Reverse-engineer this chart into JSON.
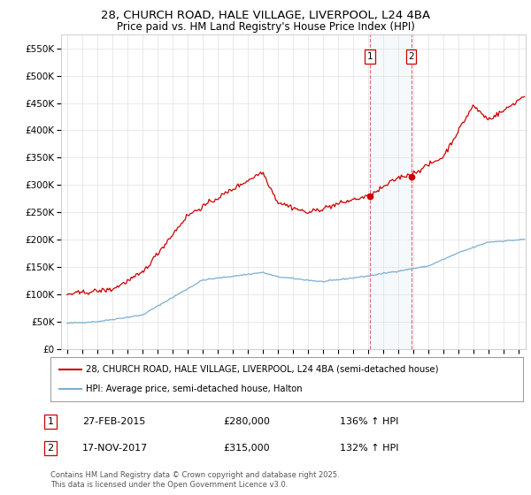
{
  "title_line1": "28, CHURCH ROAD, HALE VILLAGE, LIVERPOOL, L24 4BA",
  "title_line2": "Price paid vs. HM Land Registry's House Price Index (HPI)",
  "ylabel_ticks": [
    "£0",
    "£50K",
    "£100K",
    "£150K",
    "£200K",
    "£250K",
    "£300K",
    "£350K",
    "£400K",
    "£450K",
    "£500K",
    "£550K"
  ],
  "ytick_values": [
    0,
    50000,
    100000,
    150000,
    200000,
    250000,
    300000,
    350000,
    400000,
    450000,
    500000,
    550000
  ],
  "ylim": [
    0,
    575000
  ],
  "xlim_start": 1994.6,
  "xlim_end": 2025.5,
  "red_color": "#cc0000",
  "blue_color": "#7bafd4",
  "background_color": "#ffffff",
  "grid_color": "#e0e0e0",
  "transaction1_date": "27-FEB-2015",
  "transaction1_price": 280000,
  "transaction1_hpi": "136% ↑ HPI",
  "transaction1_x": 2015.15,
  "transaction2_date": "17-NOV-2017",
  "transaction2_price": 315000,
  "transaction2_hpi": "132% ↑ HPI",
  "transaction2_x": 2017.88,
  "legend_label_red": "28, CHURCH ROAD, HALE VILLAGE, LIVERPOOL, L24 4BA (semi-detached house)",
  "legend_label_blue": "HPI: Average price, semi-detached house, Halton",
  "footer_text": "Contains HM Land Registry data © Crown copyright and database right 2025.\nThis data is licensed under the Open Government Licence v3.0.",
  "title_fontsize": 9.5,
  "axis_fontsize": 7.5,
  "legend_fontsize": 7.5,
  "footer_fontsize": 6.0
}
